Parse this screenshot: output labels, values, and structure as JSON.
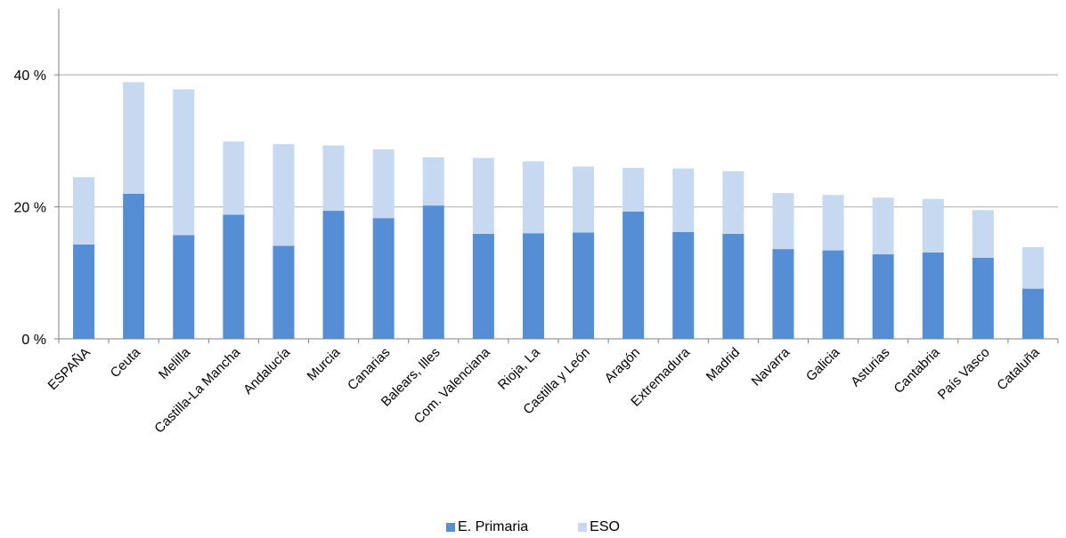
{
  "chart_data": {
    "type": "bar",
    "stacked": true,
    "categories": [
      "ESPAÑA",
      "Ceuta",
      "Melilla",
      "Castilla-La Mancha",
      "Andalucía",
      "Murcia",
      "Canarias",
      "Balears, Illes",
      "Com. Valenciana",
      "Rioja, La",
      "Castilla y León",
      "Aragón",
      "Extremadura",
      "Madrid",
      "Navarra",
      "Galicia",
      "Asturias",
      "Cantabria",
      "País Vasco",
      "Cataluña"
    ],
    "series": [
      {
        "name": "E. Primaria",
        "color": "#558ed5",
        "values": [
          14.3,
          22.0,
          15.7,
          18.8,
          14.1,
          19.4,
          18.3,
          20.2,
          15.9,
          16.0,
          16.1,
          19.3,
          16.2,
          15.9,
          13.6,
          13.4,
          12.8,
          13.1,
          12.3,
          7.6
        ]
      },
      {
        "name": "ESO",
        "color": "#c6d9f1",
        "values": [
          10.2,
          16.9,
          22.1,
          11.1,
          15.4,
          9.9,
          10.4,
          7.3,
          11.5,
          10.9,
          10.0,
          6.6,
          9.6,
          9.5,
          8.5,
          8.4,
          8.6,
          8.1,
          7.2,
          6.3
        ]
      }
    ],
    "yticks": [
      "0 %",
      "20 %",
      "40 %"
    ],
    "ytick_values": [
      0,
      20,
      40
    ],
    "ylim": [
      0,
      50
    ],
    "grid": true,
    "legend_position": "bottom"
  }
}
